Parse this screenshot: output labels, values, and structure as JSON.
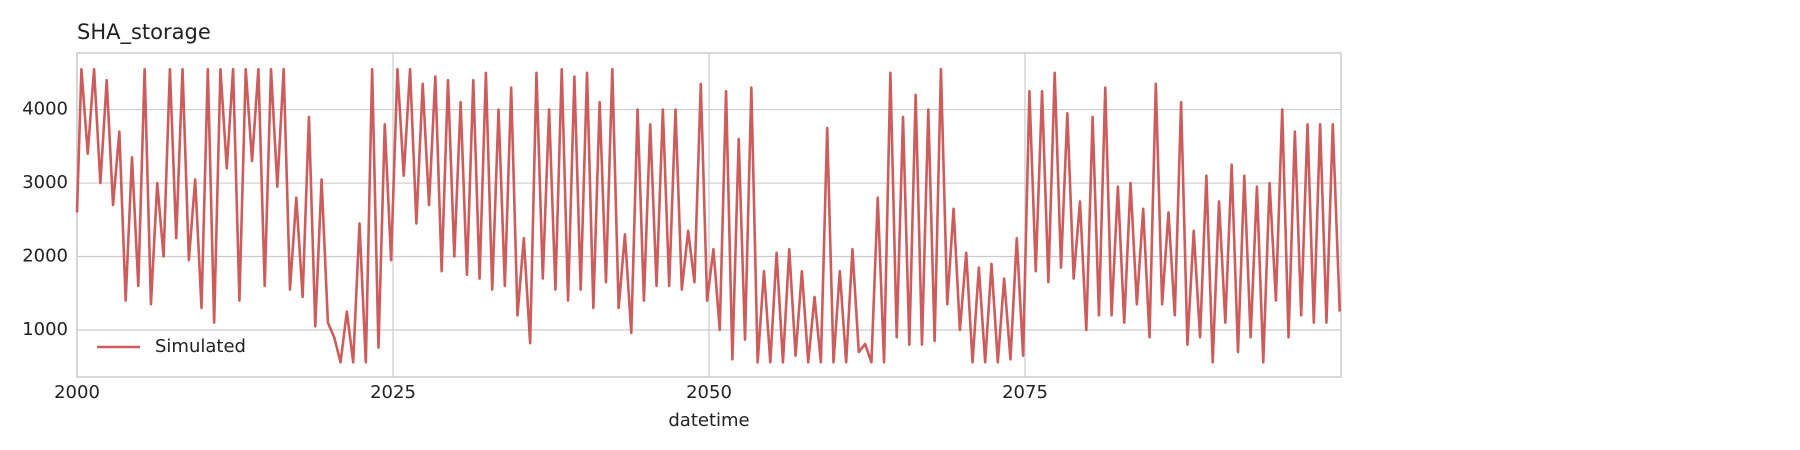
{
  "chart_data": {
    "type": "line",
    "title": "SHA_storage",
    "xlabel": "datetime",
    "x": [
      2000,
      2000.35,
      2000.85,
      2001.35,
      2001.85,
      2002.35,
      2002.85,
      2003.35,
      2003.85,
      2004.35,
      2004.85,
      2005.35,
      2005.85,
      2006.35,
      2006.85,
      2007.35,
      2007.85,
      2008.35,
      2008.85,
      2009.35,
      2009.85,
      2010.35,
      2010.85,
      2011.35,
      2011.85,
      2012.35,
      2012.85,
      2013.35,
      2013.85,
      2014.35,
      2014.85,
      2015.35,
      2015.85,
      2016.35,
      2016.85,
      2017.35,
      2017.85,
      2018.35,
      2018.85,
      2019.35,
      2019.85,
      2020.35,
      2020.85,
      2021.35,
      2021.85,
      2022.35,
      2022.85,
      2023.35,
      2023.85,
      2024.35,
      2024.85,
      2025.35,
      2025.85,
      2026.35,
      2026.85,
      2027.35,
      2027.85,
      2028.35,
      2028.85,
      2029.35,
      2029.85,
      2030.35,
      2030.85,
      2031.35,
      2031.85,
      2032.35,
      2032.85,
      2033.35,
      2033.85,
      2034.35,
      2034.85,
      2035.35,
      2035.85,
      2036.35,
      2036.85,
      2037.35,
      2037.85,
      2038.35,
      2038.85,
      2039.35,
      2039.85,
      2040.35,
      2040.85,
      2041.35,
      2041.85,
      2042.35,
      2042.85,
      2043.35,
      2043.85,
      2044.35,
      2044.85,
      2045.35,
      2045.85,
      2046.35,
      2046.85,
      2047.35,
      2047.85,
      2048.35,
      2048.85,
      2049.35,
      2049.85,
      2050.35,
      2050.85,
      2051.35,
      2051.85,
      2052.35,
      2052.85,
      2053.35,
      2053.85,
      2054.35,
      2054.85,
      2055.35,
      2055.85,
      2056.35,
      2056.85,
      2057.35,
      2057.85,
      2058.35,
      2058.85,
      2059.35,
      2059.85,
      2060.35,
      2060.85,
      2061.35,
      2061.85,
      2062.35,
      2062.85,
      2063.35,
      2063.85,
      2064.35,
      2064.85,
      2065.35,
      2065.85,
      2066.35,
      2066.85,
      2067.35,
      2067.85,
      2068.35,
      2068.85,
      2069.35,
      2069.85,
      2070.35,
      2070.85,
      2071.35,
      2071.85,
      2072.35,
      2072.85,
      2073.35,
      2073.85,
      2074.35,
      2074.85,
      2075.35,
      2075.85,
      2076.35,
      2076.85,
      2077.35,
      2077.85,
      2078.35,
      2078.85,
      2079.35,
      2079.85,
      2080.35,
      2080.85,
      2081.35,
      2081.85,
      2082.35,
      2082.85,
      2083.35,
      2083.85,
      2084.35,
      2084.85,
      2085.35,
      2085.85,
      2086.35,
      2086.85,
      2087.35,
      2087.85,
      2088.35,
      2088.85,
      2089.35,
      2089.85,
      2090.35,
      2090.85,
      2091.35,
      2091.85,
      2092.35,
      2092.85,
      2093.35,
      2093.85,
      2094.35,
      2094.85,
      2095.35,
      2095.85,
      2096.35,
      2096.85,
      2097.35,
      2097.85,
      2098.35,
      2098.85,
      2099.35,
      2099.9
    ],
    "series": [
      {
        "name": "Simulated",
        "color": "#cd5c5c",
        "values": [
          2600,
          4550,
          3400,
          4550,
          3000,
          4400,
          2700,
          3700,
          1400,
          3350,
          1600,
          4550,
          1350,
          3000,
          2000,
          4550,
          2250,
          4550,
          1950,
          3050,
          1300,
          4550,
          1100,
          4550,
          3200,
          4550,
          1400,
          4550,
          3300,
          4550,
          1600,
          4550,
          2950,
          4550,
          1550,
          2800,
          1450,
          3900,
          1050,
          3050,
          1100,
          900,
          560,
          1250,
          560,
          2450,
          560,
          4550,
          760,
          3800,
          1950,
          4550,
          3100,
          4550,
          2450,
          4350,
          2700,
          4450,
          1800,
          4400,
          2000,
          4100,
          1750,
          4400,
          1700,
          4500,
          1550,
          4000,
          1600,
          4300,
          1200,
          2250,
          820,
          4500,
          1700,
          4000,
          1550,
          4550,
          1400,
          4450,
          1550,
          4500,
          1300,
          4100,
          1650,
          4550,
          1300,
          2300,
          960,
          4000,
          1400,
          3800,
          1600,
          4000,
          1600,
          4000,
          1550,
          2350,
          1650,
          4350,
          1400,
          2100,
          1000,
          4250,
          600,
          3600,
          870,
          4300,
          560,
          1800,
          560,
          2050,
          560,
          2100,
          650,
          1800,
          560,
          1450,
          560,
          3750,
          560,
          1800,
          560,
          2100,
          700,
          810,
          560,
          2800,
          560,
          4500,
          900,
          3900,
          800,
          4200,
          800,
          4000,
          850,
          4550,
          1350,
          2650,
          1000,
          2050,
          560,
          1850,
          560,
          1900,
          560,
          1700,
          600,
          2250,
          650,
          4250,
          1800,
          4250,
          1650,
          4500,
          1850,
          3950,
          1700,
          2750,
          1000,
          3900,
          1200,
          4300,
          1200,
          2950,
          1100,
          3000,
          1350,
          2650,
          900,
          4350,
          1350,
          2600,
          1200,
          4100,
          800,
          2350,
          900,
          3100,
          560,
          2750,
          1100,
          3250,
          700,
          3100,
          900,
          2950,
          560,
          3000,
          1400,
          4000,
          900,
          3700,
          1200,
          3800,
          1100,
          3800,
          1100,
          3800,
          1250
        ]
      }
    ],
    "xlim": [
      2000,
      2100
    ],
    "xticks": [
      2000,
      2025,
      2050,
      2075
    ],
    "ylim": [
      360,
      4770
    ],
    "yticks": [
      1000,
      2000,
      3000,
      4000
    ],
    "grid": true,
    "legend": "lower left"
  }
}
